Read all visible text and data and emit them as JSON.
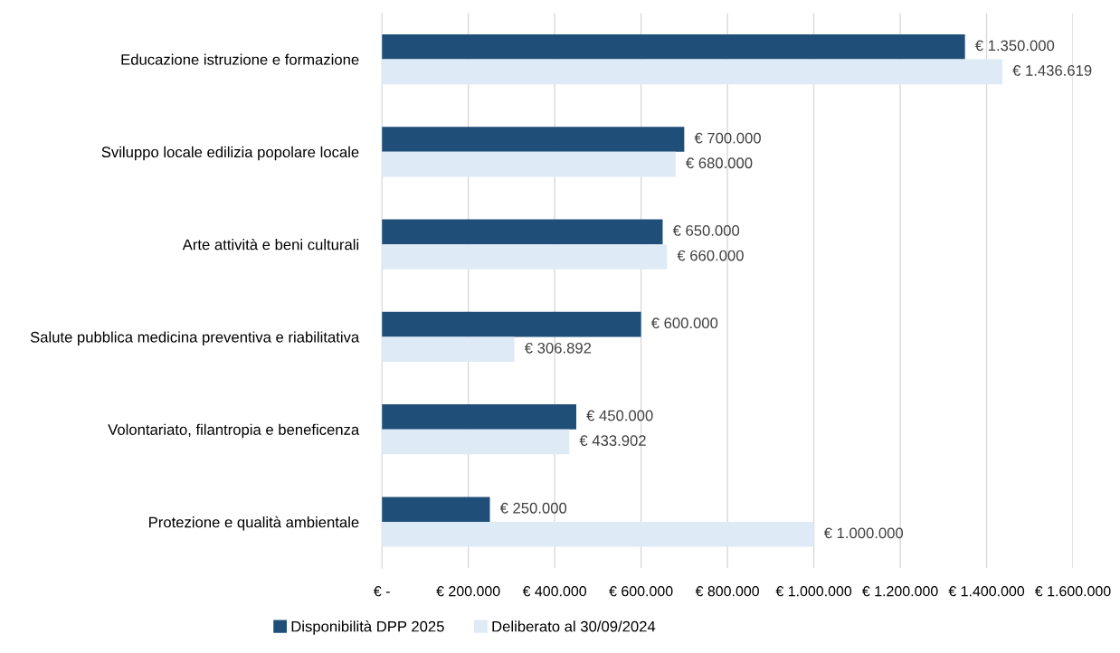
{
  "chart_data": {
    "type": "bar",
    "orientation": "horizontal",
    "categories": [
      "Educazione istruzione e formazione",
      "Sviluppo locale edilizia popolare locale",
      "Arte attività e beni culturali",
      "Salute pubblica medicina preventiva e riabilitativa",
      "Volontariato, filantropia e beneficenza",
      "Protezione e qualità ambientale"
    ],
    "series": [
      {
        "name": "Disponibilità DPP 2025",
        "color": "#1f4e79",
        "values": [
          1350000,
          700000,
          650000,
          600000,
          450000,
          250000
        ],
        "value_labels": [
          "€ 1.350.000",
          "€ 700.000",
          "€ 650.000",
          "€ 600.000",
          "€ 450.000",
          "€ 250.000"
        ]
      },
      {
        "name": "Deliberato al 30/09/2024",
        "color": "#deeaf6",
        "values": [
          1436619,
          680000,
          660000,
          306892,
          433902,
          1000000
        ],
        "value_labels": [
          "€ 1.436.619",
          "€ 680.000",
          "€ 660.000",
          "€ 306.892",
          "€ 433.902",
          "€ 1.000.000"
        ]
      }
    ],
    "xlim": [
      0,
      1600000
    ],
    "xticks": [
      {
        "value": 0,
        "label": "€ -"
      },
      {
        "value": 200000,
        "label": "€ 200.000"
      },
      {
        "value": 400000,
        "label": "€ 400.000"
      },
      {
        "value": 600000,
        "label": "€ 600.000"
      },
      {
        "value": 800000,
        "label": "€ 800.000"
      },
      {
        "value": 1000000,
        "label": "€ 1.000.000"
      },
      {
        "value": 1200000,
        "label": "€ 1.200.000"
      },
      {
        "value": 1400000,
        "label": "€ 1.400.000"
      },
      {
        "value": 1600000,
        "label": "€ 1.600.000"
      }
    ],
    "grid": "x",
    "legend": "bottom"
  }
}
